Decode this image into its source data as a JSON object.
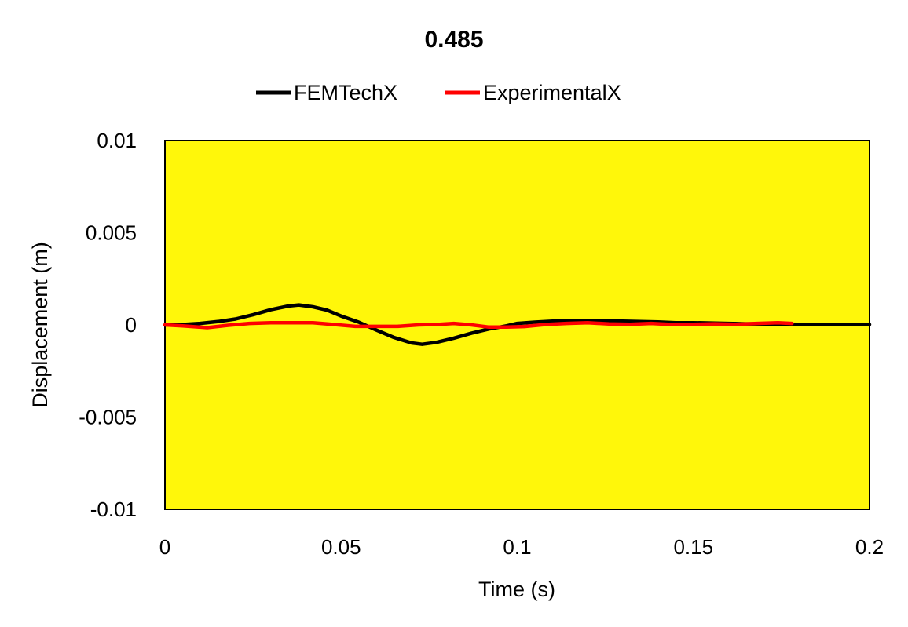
{
  "chart_data": {
    "type": "line",
    "title": "0.485",
    "xlabel": "Time (s)",
    "ylabel": "Displacement (m)",
    "xlim": [
      0,
      0.2
    ],
    "ylim": [
      -0.01,
      0.01
    ],
    "x_ticks": [
      "0",
      "0.05",
      "0.1",
      "0.15",
      "0.2"
    ],
    "y_ticks": [
      "0.01",
      "0.005",
      "0",
      "-0.005",
      "-0.01"
    ],
    "grid": false,
    "legend_position": "top",
    "plot_background": "#FFF70A",
    "series": [
      {
        "name": "FEMTechX",
        "color": "#000000",
        "x": [
          0,
          0.005,
          0.01,
          0.015,
          0.02,
          0.025,
          0.03,
          0.035,
          0.038,
          0.042,
          0.046,
          0.05,
          0.055,
          0.06,
          0.065,
          0.07,
          0.073,
          0.077,
          0.082,
          0.087,
          0.092,
          0.097,
          0.1,
          0.105,
          0.11,
          0.115,
          0.12,
          0.125,
          0.13,
          0.135,
          0.14,
          0.145,
          0.15,
          0.155,
          0.16,
          0.165,
          0.17,
          0.175,
          0.18,
          0.185,
          0.19,
          0.195,
          0.2
        ],
        "values": [
          0,
          2e-05,
          8e-05,
          0.00018,
          0.00032,
          0.00055,
          0.00082,
          0.00102,
          0.00108,
          0.00098,
          0.0008,
          0.00048,
          0.00015,
          -0.00028,
          -0.00068,
          -0.00098,
          -0.00105,
          -0.00095,
          -0.00072,
          -0.00045,
          -0.00022,
          -5e-05,
          8e-05,
          0.00015,
          0.0002,
          0.00022,
          0.00023,
          0.00022,
          0.0002,
          0.00018,
          0.00016,
          0.00012,
          0.00012,
          0.0001,
          8e-05,
          6e-05,
          5e-05,
          4e-05,
          3e-05,
          2e-05,
          2e-05,
          2e-05,
          2e-05
        ]
      },
      {
        "name": "ExperimentalX",
        "color": "#FF0000",
        "x": [
          0,
          0.005,
          0.012,
          0.018,
          0.024,
          0.03,
          0.036,
          0.042,
          0.048,
          0.054,
          0.06,
          0.066,
          0.072,
          0.078,
          0.082,
          0.087,
          0.092,
          0.097,
          0.102,
          0.108,
          0.114,
          0.12,
          0.126,
          0.132,
          0.138,
          0.144,
          0.15,
          0.156,
          0.162,
          0.168,
          0.174,
          0.178
        ],
        "values": [
          0,
          -5e-05,
          -0.00015,
          -2e-05,
          8e-05,
          0.00012,
          0.00012,
          0.00012,
          2e-05,
          -8e-05,
          -8e-05,
          -8e-05,
          0.0,
          3e-05,
          8e-05,
          0.0,
          -0.00012,
          -0.00012,
          -9e-05,
          2e-05,
          8e-05,
          0.00012,
          5e-05,
          3e-05,
          8e-05,
          2e-05,
          3e-05,
          6e-05,
          3e-05,
          8e-05,
          0.00012,
          8e-05
        ]
      }
    ]
  }
}
